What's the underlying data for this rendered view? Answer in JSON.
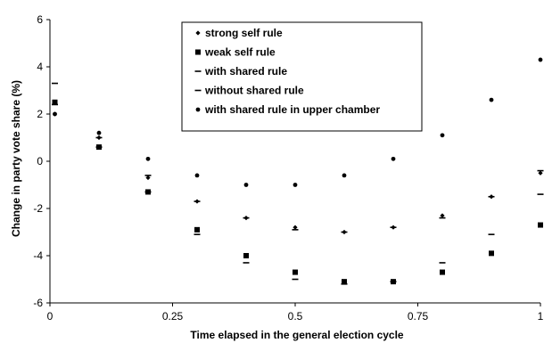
{
  "chart_data": {
    "type": "scatter",
    "xlabel": "Time elapsed in the general election cycle",
    "ylabel": "Change in party vote share (%)",
    "xlim": [
      0,
      1
    ],
    "ylim": [
      -6,
      6
    ],
    "xticks": [
      0,
      0.25,
      0.5,
      0.75,
      1
    ],
    "xtick_labels": [
      "0",
      "0.25",
      "0.5",
      "0.75",
      "1"
    ],
    "yticks": [
      -6,
      -4,
      -2,
      0,
      2,
      4,
      6
    ],
    "ytick_labels": [
      "-6",
      "-4",
      "-2",
      "0",
      "2",
      "4",
      "6"
    ],
    "grid": false,
    "legend_position": "top-center",
    "x": [
      0.01,
      0.1,
      0.2,
      0.3,
      0.4,
      0.5,
      0.6,
      0.7,
      0.8,
      0.9,
      1.0
    ],
    "series": [
      {
        "name": "strong self rule",
        "marker": "diamond",
        "values": [
          2.0,
          1.0,
          -0.7,
          -1.7,
          -2.4,
          -2.8,
          -3.0,
          -2.8,
          -2.3,
          -1.5,
          -0.5
        ]
      },
      {
        "name": "weak self rule",
        "marker": "square",
        "values": [
          2.5,
          0.6,
          -1.3,
          -2.9,
          -4.0,
          -4.7,
          -5.1,
          -5.1,
          -4.7,
          -3.9,
          -2.7
        ]
      },
      {
        "name": "with shared rule",
        "marker": "dash",
        "values": [
          3.3,
          1.0,
          -0.6,
          -1.7,
          -2.4,
          -2.9,
          -3.0,
          -2.8,
          -2.4,
          -1.5,
          -0.4
        ]
      },
      {
        "name": "without shared rule",
        "marker": "dash",
        "values": [
          2.4,
          0.6,
          -1.3,
          -3.1,
          -4.3,
          -5.0,
          -5.2,
          -5.1,
          -4.3,
          -3.1,
          -1.4
        ]
      },
      {
        "name": "with shared rule in upper chamber",
        "marker": "circle",
        "values": [
          2.0,
          1.2,
          0.1,
          -0.6,
          -1.0,
          -1.0,
          -0.6,
          0.1,
          1.1,
          2.6,
          4.3
        ]
      }
    ]
  }
}
